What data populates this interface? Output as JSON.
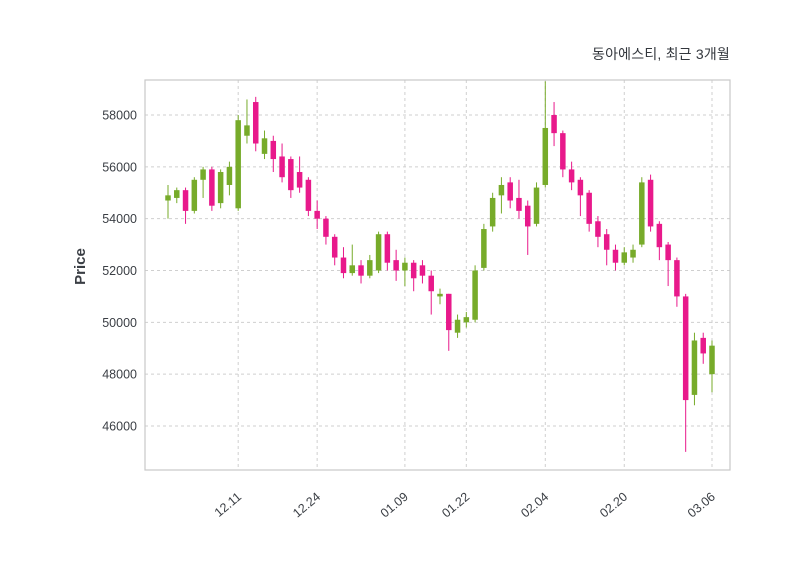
{
  "header": {
    "title": "동아에스티, 최근 3개월"
  },
  "chart_data": {
    "type": "candlestick",
    "title": "동아에스티, 최근 3개월",
    "ylabel": "Price",
    "xlabel": "",
    "grid": true,
    "ylim": [
      44600,
      59800
    ],
    "up_color": "#77ab2a",
    "down_color": "#e8198b",
    "grid_color": "#cfcfcf",
    "border_color": "#c8c8c8",
    "tick_text_color": "#3a3e44",
    "y_ticks": [
      46000,
      48000,
      50000,
      52000,
      54000,
      56000,
      58000
    ],
    "x_ticks": [
      {
        "label": "12.11",
        "index": 8
      },
      {
        "label": "12.24",
        "index": 17
      },
      {
        "label": "01.09",
        "index": 27
      },
      {
        "label": "01.22",
        "index": 34
      },
      {
        "label": "02.04",
        "index": 43
      },
      {
        "label": "02.20",
        "index": 52
      },
      {
        "label": "03.06",
        "index": 62
      }
    ],
    "candles": [
      [
        54700,
        55300,
        54000,
        54900
      ],
      [
        54800,
        55200,
        54600,
        55100
      ],
      [
        55100,
        55200,
        53800,
        54300
      ],
      [
        54300,
        55600,
        54200,
        55500
      ],
      [
        55500,
        56000,
        54800,
        55900
      ],
      [
        55900,
        56000,
        54300,
        54500
      ],
      [
        54600,
        55900,
        54400,
        55800
      ],
      [
        55300,
        56200,
        54900,
        56000
      ],
      [
        54400,
        58000,
        54300,
        57800
      ],
      [
        57200,
        58600,
        56900,
        57600
      ],
      [
        58500,
        58700,
        56600,
        56900
      ],
      [
        56500,
        57400,
        56300,
        57100
      ],
      [
        57000,
        57200,
        55800,
        56300
      ],
      [
        56400,
        56900,
        55400,
        55600
      ],
      [
        56300,
        56400,
        54800,
        55100
      ],
      [
        55800,
        56400,
        55000,
        55200
      ],
      [
        55500,
        55600,
        54100,
        54300
      ],
      [
        54300,
        54700,
        53600,
        54000
      ],
      [
        54000,
        54100,
        53000,
        53300
      ],
      [
        53300,
        53400,
        52200,
        52500
      ],
      [
        52500,
        52900,
        51700,
        51900
      ],
      [
        51900,
        53000,
        51800,
        52200
      ],
      [
        52200,
        52400,
        51500,
        51800
      ],
      [
        51800,
        52600,
        51700,
        52400
      ],
      [
        52000,
        53500,
        51900,
        53400
      ],
      [
        53400,
        53500,
        52000,
        52300
      ],
      [
        52400,
        52800,
        51600,
        52000
      ],
      [
        52000,
        52500,
        51400,
        52300
      ],
      [
        52300,
        52400,
        51200,
        51700
      ],
      [
        52200,
        52400,
        51500,
        51800
      ],
      [
        51800,
        52000,
        50300,
        51200
      ],
      [
        51000,
        51300,
        50700,
        51100
      ],
      [
        51100,
        51100,
        48900,
        49700
      ],
      [
        49600,
        50300,
        49400,
        50100
      ],
      [
        50000,
        50400,
        49800,
        50200
      ],
      [
        50100,
        52200,
        50000,
        52000
      ],
      [
        52100,
        53800,
        52000,
        53600
      ],
      [
        53700,
        55000,
        53500,
        54800
      ],
      [
        54900,
        55600,
        54200,
        55300
      ],
      [
        55400,
        55600,
        54400,
        54700
      ],
      [
        54800,
        55500,
        54000,
        54300
      ],
      [
        54500,
        54700,
        52600,
        53700
      ],
      [
        53800,
        55400,
        53700,
        55200
      ],
      [
        55300,
        59300,
        55200,
        57500
      ],
      [
        58000,
        58500,
        56800,
        57300
      ],
      [
        57300,
        57400,
        55600,
        55900
      ],
      [
        55900,
        56200,
        55100,
        55400
      ],
      [
        55500,
        55600,
        54100,
        54900
      ],
      [
        55000,
        55100,
        53500,
        53800
      ],
      [
        53900,
        54100,
        52900,
        53300
      ],
      [
        53400,
        53600,
        52200,
        52800
      ],
      [
        52800,
        53000,
        52000,
        52300
      ],
      [
        52300,
        52900,
        52200,
        52700
      ],
      [
        52500,
        53000,
        52300,
        52800
      ],
      [
        53000,
        55600,
        52900,
        55400
      ],
      [
        55500,
        55700,
        53500,
        53700
      ],
      [
        53800,
        53900,
        52400,
        52900
      ],
      [
        53000,
        53100,
        51400,
        52400
      ],
      [
        52400,
        52500,
        50600,
        51000
      ],
      [
        51000,
        51100,
        45000,
        47000
      ],
      [
        47200,
        49600,
        46800,
        49300
      ],
      [
        49400,
        49600,
        48400,
        48800
      ],
      [
        48000,
        49300,
        47300,
        49100
      ]
    ]
  }
}
